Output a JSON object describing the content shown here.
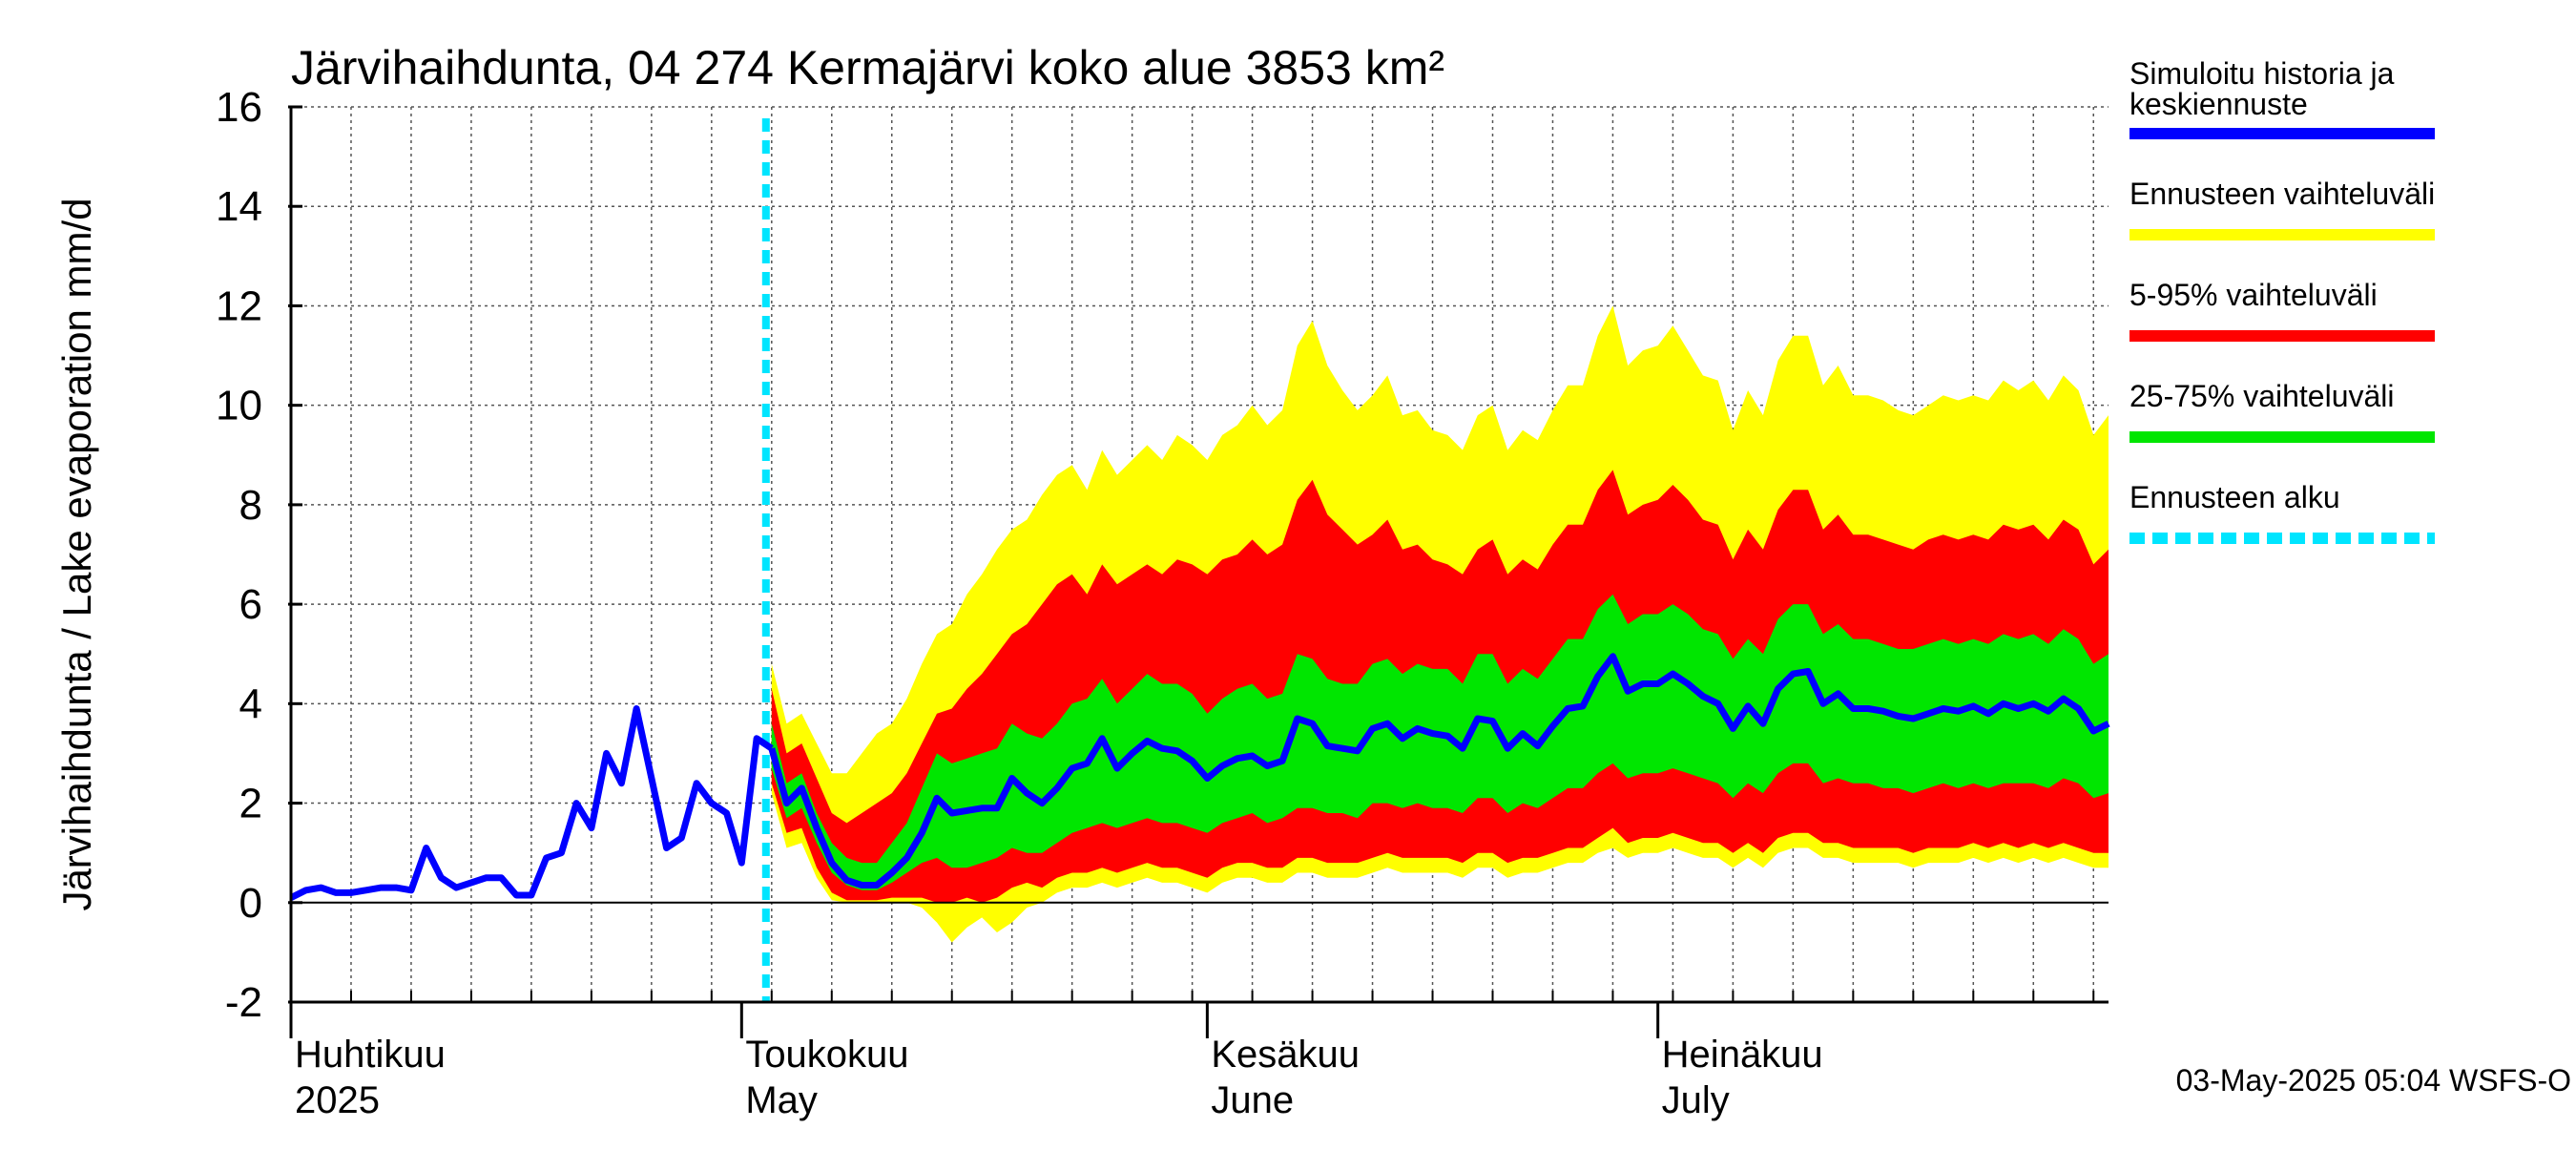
{
  "chart_data": {
    "type": "area",
    "title": "Järvihaihdunta, 04 274 Kermajärvi koko alue 3853 km²",
    "ylabel": "Järvihaihdunta / Lake evaporation   mm/d",
    "ylim": [
      -2,
      16
    ],
    "yticks": [
      -2,
      0,
      2,
      4,
      6,
      8,
      10,
      12,
      14,
      16
    ],
    "y_tick_labels": [
      "-2",
      "0",
      "2",
      "4",
      "6",
      "8",
      "10",
      "12",
      "14",
      "16"
    ],
    "x_start": "2025-04-01",
    "x_end": "2025-07-31",
    "forecast_start": "2025-05-03",
    "grid": true,
    "legend_position": "right",
    "month_labels": [
      {
        "date": "2025-04-01",
        "fi": "Huhtikuu",
        "en": "2025"
      },
      {
        "date": "2025-05-01",
        "fi": "Toukokuu",
        "en": "May"
      },
      {
        "date": "2025-06-01",
        "fi": "Kesäkuu",
        "en": "June"
      },
      {
        "date": "2025-07-01",
        "fi": "Heinäkuu",
        "en": "July"
      }
    ],
    "legend": [
      {
        "label_line1": "Simuloitu historia ja",
        "label_line2": "keskiennuste",
        "color": "#0000ff",
        "style": "solid"
      },
      {
        "label_line1": "Ennusteen vaihteluväli",
        "label_line2": "",
        "color": "#ffff00",
        "style": "solid"
      },
      {
        "label_line1": "5-95% vaihteluväli",
        "label_line2": "",
        "color": "#ff0000",
        "style": "solid"
      },
      {
        "label_line1": "25-75% vaihteluväli",
        "label_line2": "",
        "color": "#00e600",
        "style": "solid"
      },
      {
        "label_line1": "Ennusteen alku",
        "label_line2": "",
        "color": "#00e5ff",
        "style": "dashed"
      }
    ],
    "colors": {
      "history": "#0000ff",
      "range": "#ffff00",
      "p5_95": "#ff0000",
      "p25_75": "#00e600",
      "forecast_start": "#00e5ff"
    },
    "history": {
      "x": [
        "2025-04-01",
        "2025-04-02",
        "2025-04-03",
        "2025-04-04",
        "2025-04-05",
        "2025-04-06",
        "2025-04-07",
        "2025-04-08",
        "2025-04-09",
        "2025-04-10",
        "2025-04-11",
        "2025-04-12",
        "2025-04-13",
        "2025-04-14",
        "2025-04-15",
        "2025-04-16",
        "2025-04-17",
        "2025-04-18",
        "2025-04-19",
        "2025-04-20",
        "2025-04-21",
        "2025-04-22",
        "2025-04-23",
        "2025-04-24",
        "2025-04-25",
        "2025-04-26",
        "2025-04-27",
        "2025-04-28",
        "2025-04-29",
        "2025-04-30",
        "2025-05-01",
        "2025-05-02",
        "2025-05-03"
      ],
      "values": [
        0.1,
        0.25,
        0.3,
        0.2,
        0.2,
        0.25,
        0.3,
        0.3,
        0.25,
        1.1,
        0.5,
        0.3,
        0.4,
        0.5,
        0.5,
        0.15,
        0.15,
        0.9,
        1.0,
        2.0,
        1.5,
        3.0,
        2.4,
        3.9,
        2.5,
        1.1,
        1.3,
        2.4,
        2.0,
        1.8,
        0.8,
        3.3,
        3.1
      ]
    },
    "forecast": {
      "x": [
        "2025-05-03",
        "2025-05-04",
        "2025-05-05",
        "2025-05-06",
        "2025-05-07",
        "2025-05-08",
        "2025-05-09",
        "2025-05-10",
        "2025-05-11",
        "2025-05-12",
        "2025-05-13",
        "2025-05-14",
        "2025-05-15",
        "2025-05-16",
        "2025-05-17",
        "2025-05-18",
        "2025-05-19",
        "2025-05-20",
        "2025-05-21",
        "2025-05-22",
        "2025-05-23",
        "2025-05-24",
        "2025-05-25",
        "2025-05-26",
        "2025-05-27",
        "2025-05-28",
        "2025-05-29",
        "2025-05-30",
        "2025-05-31",
        "2025-06-01",
        "2025-06-02",
        "2025-06-03",
        "2025-06-04",
        "2025-06-05",
        "2025-06-06",
        "2025-06-07",
        "2025-06-08",
        "2025-06-09",
        "2025-06-10",
        "2025-06-11",
        "2025-06-12",
        "2025-06-13",
        "2025-06-14",
        "2025-06-15",
        "2025-06-16",
        "2025-06-17",
        "2025-06-18",
        "2025-06-19",
        "2025-06-20",
        "2025-06-21",
        "2025-06-22",
        "2025-06-23",
        "2025-06-24",
        "2025-06-25",
        "2025-06-26",
        "2025-06-27",
        "2025-06-28",
        "2025-06-29",
        "2025-06-30",
        "2025-07-01",
        "2025-07-02",
        "2025-07-03",
        "2025-07-04",
        "2025-07-05",
        "2025-07-06",
        "2025-07-07",
        "2025-07-08",
        "2025-07-09",
        "2025-07-10",
        "2025-07-11",
        "2025-07-12",
        "2025-07-13",
        "2025-07-14",
        "2025-07-15",
        "2025-07-16",
        "2025-07-17",
        "2025-07-18",
        "2025-07-19",
        "2025-07-20",
        "2025-07-21",
        "2025-07-22",
        "2025-07-23",
        "2025-07-24",
        "2025-07-25",
        "2025-07-26",
        "2025-07-27",
        "2025-07-28",
        "2025-07-29",
        "2025-07-30",
        "2025-07-31"
      ],
      "median": [
        3.1,
        2.0,
        2.3,
        1.5,
        0.8,
        0.45,
        0.35,
        0.35,
        0.6,
        0.9,
        1.4,
        2.1,
        1.8,
        1.85,
        1.9,
        1.9,
        2.5,
        2.2,
        2.0,
        2.3,
        2.7,
        2.8,
        3.3,
        2.7,
        3.0,
        3.25,
        3.1,
        3.05,
        2.85,
        2.5,
        2.75,
        2.9,
        2.95,
        2.75,
        2.85,
        3.7,
        3.6,
        3.15,
        3.1,
        3.05,
        3.5,
        3.6,
        3.3,
        3.5,
        3.4,
        3.35,
        3.1,
        3.7,
        3.65,
        3.1,
        3.4,
        3.15,
        3.55,
        3.9,
        3.95,
        4.55,
        4.95,
        4.25,
        4.4,
        4.4,
        4.6,
        4.4,
        4.15,
        4.0,
        3.5,
        3.95,
        3.6,
        4.3,
        4.6,
        4.65,
        4.0,
        4.2,
        3.9,
        3.9,
        3.85,
        3.75,
        3.7,
        3.8,
        3.9,
        3.85,
        3.95,
        3.8,
        4.0,
        3.9,
        4.0,
        3.85,
        4.1,
        3.9,
        3.45,
        3.6
      ],
      "p25": [
        2.7,
        1.7,
        1.9,
        1.2,
        0.6,
        0.35,
        0.25,
        0.25,
        0.4,
        0.6,
        0.8,
        0.9,
        0.7,
        0.7,
        0.8,
        0.9,
        1.1,
        1.0,
        1.0,
        1.2,
        1.4,
        1.5,
        1.6,
        1.5,
        1.6,
        1.7,
        1.6,
        1.6,
        1.5,
        1.4,
        1.6,
        1.7,
        1.8,
        1.6,
        1.7,
        1.9,
        1.9,
        1.8,
        1.8,
        1.7,
        2.0,
        2.0,
        1.9,
        2.0,
        1.9,
        1.9,
        1.8,
        2.1,
        2.1,
        1.8,
        2.0,
        1.9,
        2.1,
        2.3,
        2.3,
        2.6,
        2.8,
        2.5,
        2.6,
        2.6,
        2.7,
        2.6,
        2.5,
        2.4,
        2.1,
        2.4,
        2.2,
        2.6,
        2.8,
        2.8,
        2.4,
        2.5,
        2.4,
        2.4,
        2.3,
        2.3,
        2.2,
        2.3,
        2.4,
        2.3,
        2.4,
        2.3,
        2.4,
        2.4,
        2.4,
        2.3,
        2.5,
        2.4,
        2.1,
        2.2
      ],
      "p75": [
        3.6,
        2.4,
        2.6,
        1.8,
        1.2,
        0.9,
        0.8,
        0.8,
        1.2,
        1.6,
        2.3,
        3.0,
        2.8,
        2.9,
        3.0,
        3.1,
        3.6,
        3.4,
        3.3,
        3.6,
        4.0,
        4.1,
        4.5,
        4.0,
        4.3,
        4.6,
        4.4,
        4.4,
        4.2,
        3.8,
        4.1,
        4.3,
        4.4,
        4.1,
        4.2,
        5.0,
        4.9,
        4.5,
        4.4,
        4.4,
        4.8,
        4.9,
        4.6,
        4.8,
        4.7,
        4.7,
        4.4,
        5.0,
        5.0,
        4.4,
        4.7,
        4.5,
        4.9,
        5.3,
        5.3,
        5.9,
        6.2,
        5.6,
        5.8,
        5.8,
        6.0,
        5.8,
        5.5,
        5.4,
        4.9,
        5.3,
        5.0,
        5.7,
        6.0,
        6.0,
        5.4,
        5.6,
        5.3,
        5.3,
        5.2,
        5.1,
        5.1,
        5.2,
        5.3,
        5.2,
        5.3,
        5.2,
        5.4,
        5.3,
        5.4,
        5.2,
        5.5,
        5.3,
        4.8,
        5.0
      ],
      "p5": [
        2.4,
        1.4,
        1.5,
        0.7,
        0.2,
        0.05,
        0.05,
        0.05,
        0.1,
        0.1,
        0.1,
        0.0,
        0.0,
        0.1,
        0.0,
        0.1,
        0.3,
        0.4,
        0.3,
        0.5,
        0.6,
        0.6,
        0.7,
        0.6,
        0.7,
        0.8,
        0.7,
        0.7,
        0.6,
        0.5,
        0.7,
        0.8,
        0.8,
        0.7,
        0.7,
        0.9,
        0.9,
        0.8,
        0.8,
        0.8,
        0.9,
        1.0,
        0.9,
        0.9,
        0.9,
        0.9,
        0.8,
        1.0,
        1.0,
        0.8,
        0.9,
        0.9,
        1.0,
        1.1,
        1.1,
        1.3,
        1.5,
        1.2,
        1.3,
        1.3,
        1.4,
        1.3,
        1.2,
        1.2,
        1.0,
        1.2,
        1.0,
        1.3,
        1.4,
        1.4,
        1.2,
        1.2,
        1.1,
        1.1,
        1.1,
        1.1,
        1.0,
        1.1,
        1.1,
        1.1,
        1.2,
        1.1,
        1.2,
        1.1,
        1.2,
        1.1,
        1.2,
        1.1,
        1.0,
        1.0
      ],
      "p95": [
        4.3,
        3.0,
        3.2,
        2.5,
        1.8,
        1.6,
        1.8,
        2.0,
        2.2,
        2.6,
        3.2,
        3.8,
        3.9,
        4.3,
        4.6,
        5.0,
        5.4,
        5.6,
        6.0,
        6.4,
        6.6,
        6.2,
        6.8,
        6.4,
        6.6,
        6.8,
        6.6,
        6.9,
        6.8,
        6.6,
        6.9,
        7.0,
        7.3,
        7.0,
        7.2,
        8.1,
        8.5,
        7.8,
        7.5,
        7.2,
        7.4,
        7.7,
        7.1,
        7.2,
        6.9,
        6.8,
        6.6,
        7.1,
        7.3,
        6.6,
        6.9,
        6.7,
        7.2,
        7.6,
        7.6,
        8.3,
        8.7,
        7.8,
        8.0,
        8.1,
        8.4,
        8.1,
        7.7,
        7.6,
        6.9,
        7.5,
        7.1,
        7.9,
        8.3,
        8.3,
        7.5,
        7.8,
        7.4,
        7.4,
        7.3,
        7.2,
        7.1,
        7.3,
        7.4,
        7.3,
        7.4,
        7.3,
        7.6,
        7.5,
        7.6,
        7.3,
        7.7,
        7.5,
        6.8,
        7.1
      ],
      "min": [
        2.2,
        1.1,
        1.2,
        0.5,
        0.05,
        0.0,
        0.0,
        0.0,
        0.0,
        0.0,
        -0.1,
        -0.4,
        -0.8,
        -0.5,
        -0.3,
        -0.6,
        -0.4,
        -0.1,
        0.0,
        0.2,
        0.3,
        0.3,
        0.4,
        0.3,
        0.4,
        0.5,
        0.4,
        0.4,
        0.3,
        0.2,
        0.4,
        0.5,
        0.5,
        0.4,
        0.4,
        0.6,
        0.6,
        0.5,
        0.5,
        0.5,
        0.6,
        0.7,
        0.6,
        0.6,
        0.6,
        0.6,
        0.5,
        0.7,
        0.7,
        0.5,
        0.6,
        0.6,
        0.7,
        0.8,
        0.8,
        1.0,
        1.1,
        0.9,
        1.0,
        1.0,
        1.1,
        1.0,
        0.9,
        0.9,
        0.7,
        0.9,
        0.7,
        1.0,
        1.1,
        1.1,
        0.9,
        0.9,
        0.8,
        0.8,
        0.8,
        0.8,
        0.7,
        0.8,
        0.8,
        0.8,
        0.9,
        0.8,
        0.9,
        0.8,
        0.9,
        0.8,
        0.9,
        0.8,
        0.7,
        0.7
      ],
      "max": [
        4.8,
        3.6,
        3.8,
        3.2,
        2.6,
        2.6,
        3.0,
        3.4,
        3.6,
        4.1,
        4.8,
        5.4,
        5.6,
        6.2,
        6.6,
        7.1,
        7.5,
        7.7,
        8.2,
        8.6,
        8.8,
        8.3,
        9.1,
        8.6,
        8.9,
        9.2,
        8.9,
        9.4,
        9.2,
        8.9,
        9.4,
        9.6,
        10.0,
        9.6,
        9.9,
        11.2,
        11.7,
        10.8,
        10.3,
        9.9,
        10.2,
        10.6,
        9.8,
        9.9,
        9.5,
        9.4,
        9.1,
        9.8,
        10.0,
        9.1,
        9.5,
        9.3,
        9.9,
        10.4,
        10.4,
        11.4,
        12.0,
        10.8,
        11.1,
        11.2,
        11.6,
        11.1,
        10.6,
        10.5,
        9.5,
        10.3,
        9.8,
        10.9,
        11.4,
        11.4,
        10.4,
        10.8,
        10.2,
        10.2,
        10.1,
        9.9,
        9.8,
        10.0,
        10.2,
        10.1,
        10.2,
        10.1,
        10.5,
        10.3,
        10.5,
        10.1,
        10.6,
        10.3,
        9.4,
        9.8
      ]
    },
    "footer": "03-May-2025 05:04 WSFS-O"
  }
}
